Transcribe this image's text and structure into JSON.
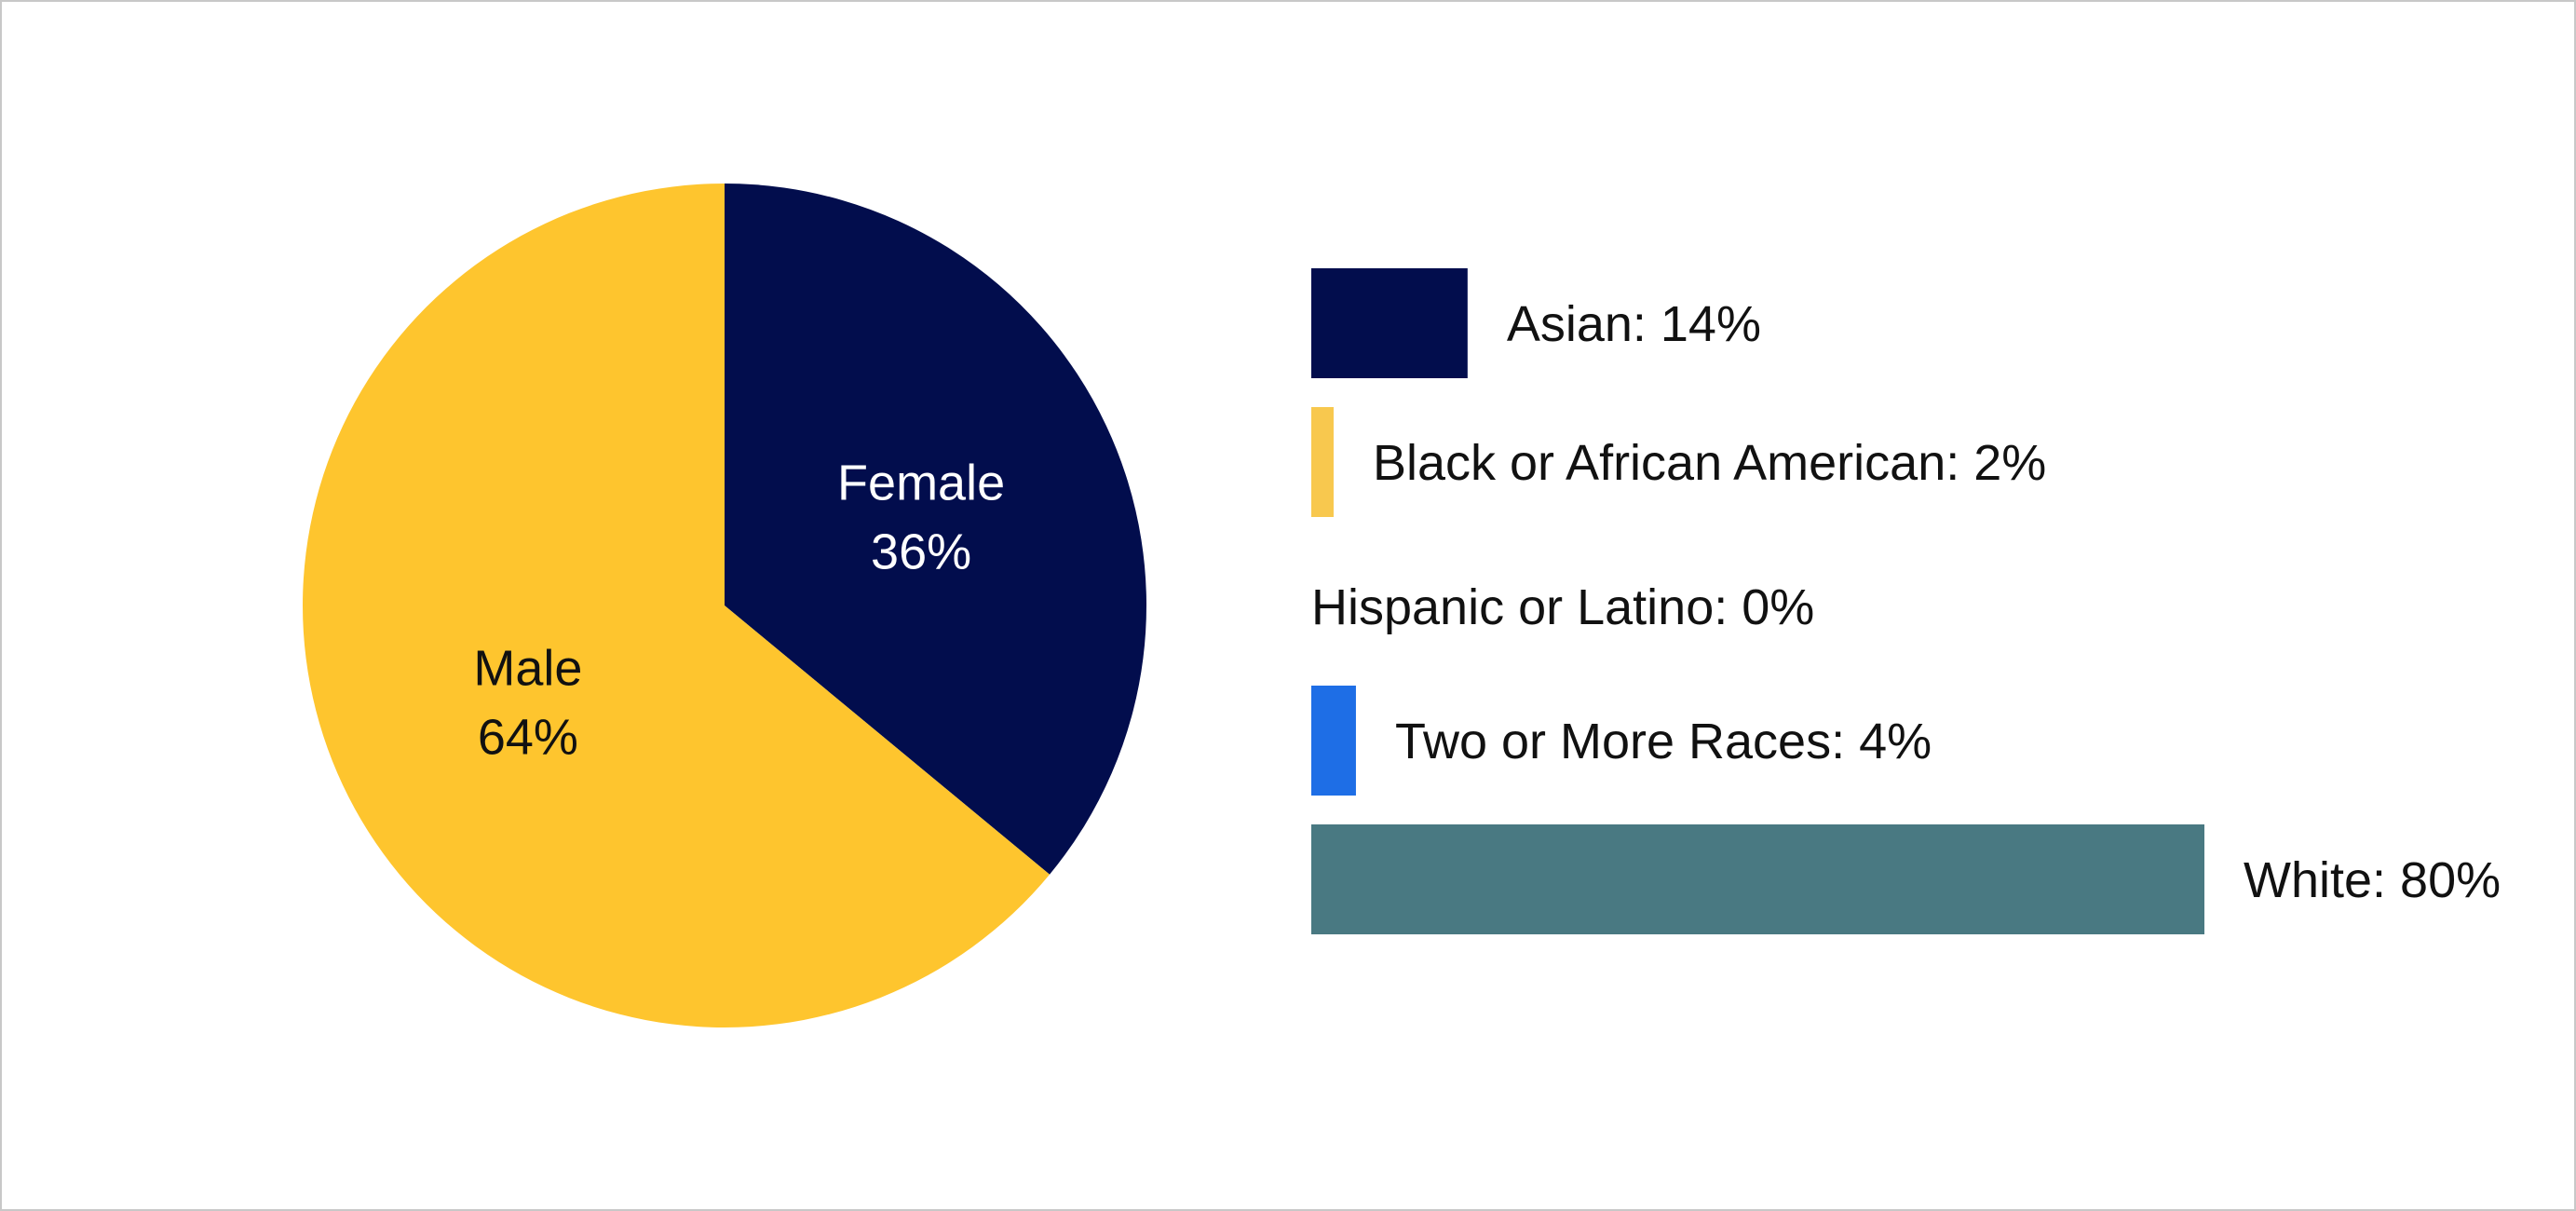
{
  "chart_data": [
    {
      "type": "pie",
      "slices": [
        {
          "label": "Female",
          "value": 36,
          "value_label": "36%",
          "color": "#020d4d",
          "text_color": "#ffffff"
        },
        {
          "label": "Male",
          "value": 64,
          "value_label": "64%",
          "color": "#fec52e",
          "text_color": "#111111"
        }
      ]
    },
    {
      "type": "bar",
      "orientation": "horizontal",
      "categories": [
        "Asian",
        "Black or African American",
        "Hispanic or Latino",
        "Two or More Races",
        "White"
      ],
      "values": [
        14,
        2,
        0,
        4,
        80
      ],
      "labels": [
        "Asian: 14%",
        "Black or African American: 2%",
        "Hispanic or Latino: 0%",
        "Two or More Races: 4%",
        "White: 80%"
      ],
      "colors": [
        "#020d4d",
        "#f8c84e",
        "#ffffff",
        "#1e6ee6",
        "#497982"
      ]
    }
  ]
}
